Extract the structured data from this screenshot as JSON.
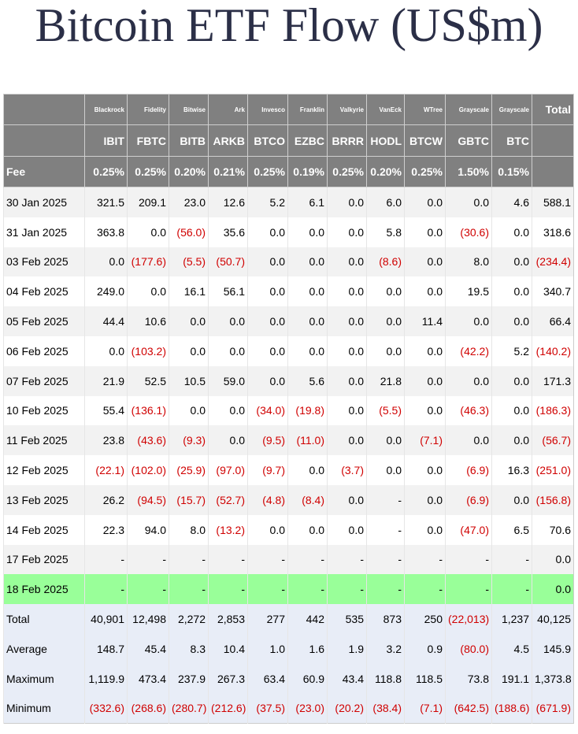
{
  "title": "Bitcoin ETF Flow (US$m)",
  "colors": {
    "header_bg": "#808080",
    "highlight_row": "#99ff99",
    "summary_bg": "#e8edf7",
    "negative_text": "#d00000"
  },
  "table": {
    "providers": [
      "Blackrock",
      "Fidelity",
      "Bitwise",
      "Ark",
      "Invesco",
      "Franklin",
      "Valkyrie",
      "VanEck",
      "WTree",
      "Grayscale",
      "Grayscale"
    ],
    "total_label": "Total",
    "tickers": [
      "IBIT",
      "FBTC",
      "BITB",
      "ARKB",
      "BTCO",
      "EZBC",
      "BRRR",
      "HODL",
      "BTCW",
      "GBTC",
      "BTC"
    ],
    "fee_label": "Fee",
    "fees": [
      "0.25%",
      "0.25%",
      "0.20%",
      "0.21%",
      "0.25%",
      "0.19%",
      "0.25%",
      "0.20%",
      "0.25%",
      "1.50%",
      "0.15%"
    ],
    "rows": [
      {
        "date": "30 Jan 2025",
        "values": [
          "321.5",
          "209.1",
          "23.0",
          "12.6",
          "5.2",
          "6.1",
          "0.0",
          "6.0",
          "0.0",
          "0.0",
          "4.6"
        ],
        "total": "588.1"
      },
      {
        "date": "31 Jan 2025",
        "values": [
          "363.8",
          "0.0",
          "(56.0)",
          "35.6",
          "0.0",
          "0.0",
          "0.0",
          "5.8",
          "0.0",
          "(30.6)",
          "0.0"
        ],
        "total": "318.6"
      },
      {
        "date": "03 Feb 2025",
        "values": [
          "0.0",
          "(177.6)",
          "(5.5)",
          "(50.7)",
          "0.0",
          "0.0",
          "0.0",
          "(8.6)",
          "0.0",
          "8.0",
          "0.0"
        ],
        "total": "(234.4)"
      },
      {
        "date": "04 Feb 2025",
        "values": [
          "249.0",
          "0.0",
          "16.1",
          "56.1",
          "0.0",
          "0.0",
          "0.0",
          "0.0",
          "0.0",
          "19.5",
          "0.0"
        ],
        "total": "340.7"
      },
      {
        "date": "05 Feb 2025",
        "values": [
          "44.4",
          "10.6",
          "0.0",
          "0.0",
          "0.0",
          "0.0",
          "0.0",
          "0.0",
          "11.4",
          "0.0",
          "0.0"
        ],
        "total": "66.4"
      },
      {
        "date": "06 Feb 2025",
        "values": [
          "0.0",
          "(103.2)",
          "0.0",
          "0.0",
          "0.0",
          "0.0",
          "0.0",
          "0.0",
          "0.0",
          "(42.2)",
          "5.2"
        ],
        "total": "(140.2)"
      },
      {
        "date": "07 Feb 2025",
        "values": [
          "21.9",
          "52.5",
          "10.5",
          "59.0",
          "0.0",
          "5.6",
          "0.0",
          "21.8",
          "0.0",
          "0.0",
          "0.0"
        ],
        "total": "171.3"
      },
      {
        "date": "10 Feb 2025",
        "values": [
          "55.4",
          "(136.1)",
          "0.0",
          "0.0",
          "(34.0)",
          "(19.8)",
          "0.0",
          "(5.5)",
          "0.0",
          "(46.3)",
          "0.0"
        ],
        "total": "(186.3)"
      },
      {
        "date": "11 Feb 2025",
        "values": [
          "23.8",
          "(43.6)",
          "(9.3)",
          "0.0",
          "(9.5)",
          "(11.0)",
          "0.0",
          "0.0",
          "(7.1)",
          "0.0",
          "0.0"
        ],
        "total": "(56.7)"
      },
      {
        "date": "12 Feb 2025",
        "values": [
          "(22.1)",
          "(102.0)",
          "(25.9)",
          "(97.0)",
          "(9.7)",
          "0.0",
          "(3.7)",
          "0.0",
          "0.0",
          "(6.9)",
          "16.3"
        ],
        "total": "(251.0)"
      },
      {
        "date": "13 Feb 2025",
        "values": [
          "26.2",
          "(94.5)",
          "(15.7)",
          "(52.7)",
          "(4.8)",
          "(8.4)",
          "0.0",
          "-",
          "0.0",
          "(6.9)",
          "0.0"
        ],
        "total": "(156.8)"
      },
      {
        "date": "14 Feb 2025",
        "values": [
          "22.3",
          "94.0",
          "8.0",
          "(13.2)",
          "0.0",
          "0.0",
          "0.0",
          "-",
          "0.0",
          "(47.0)",
          "6.5"
        ],
        "total": "70.6"
      },
      {
        "date": "17 Feb 2025",
        "values": [
          "-",
          "-",
          "-",
          "-",
          "-",
          "-",
          "-",
          "-",
          "-",
          "-",
          "-"
        ],
        "total": "0.0"
      },
      {
        "date": "18 Feb 2025",
        "values": [
          "-",
          "-",
          "-",
          "-",
          "-",
          "-",
          "-",
          "-",
          "-",
          "-",
          "-"
        ],
        "total": "0.0",
        "highlight": true
      }
    ],
    "summary": [
      {
        "label": "Total",
        "values": [
          "40,901",
          "12,498",
          "2,272",
          "2,853",
          "277",
          "442",
          "535",
          "873",
          "250",
          "(22,013)",
          "1,237"
        ],
        "total": "40,125"
      },
      {
        "label": "Average",
        "values": [
          "148.7",
          "45.4",
          "8.3",
          "10.4",
          "1.0",
          "1.6",
          "1.9",
          "3.2",
          "0.9",
          "(80.0)",
          "4.5"
        ],
        "total": "145.9"
      },
      {
        "label": "Maximum",
        "values": [
          "1,119.9",
          "473.4",
          "237.9",
          "267.3",
          "63.4",
          "60.9",
          "43.4",
          "118.8",
          "118.5",
          "73.8",
          "191.1"
        ],
        "total": "1,373.8"
      },
      {
        "label": "Minimum",
        "values": [
          "(332.6)",
          "(268.6)",
          "(280.7)",
          "(212.6)",
          "(37.5)",
          "(23.0)",
          "(20.2)",
          "(38.4)",
          "(7.1)",
          "(642.5)",
          "(188.6)"
        ],
        "total": "(671.9)"
      }
    ]
  }
}
